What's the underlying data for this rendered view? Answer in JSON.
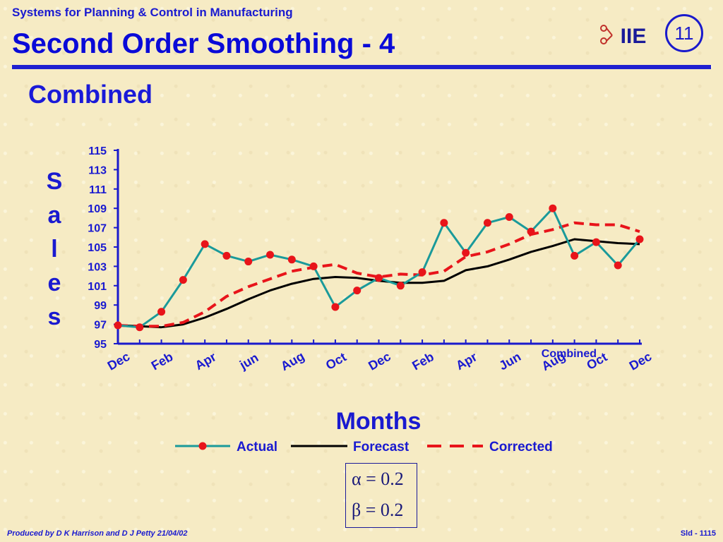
{
  "header": {
    "course": "Systems for Planning & Control in Manufacturing",
    "title": "Second Order Smoothing - 4",
    "slide_number": "11",
    "logo_text": "IIE"
  },
  "subtitle": "Combined",
  "formulas": {
    "alpha": "α = 0.2",
    "beta": "β = 0.2"
  },
  "footer": {
    "credit": "Produced by D K Harrison and D J Petty 21/04/02",
    "slide_id": "Sld - 1115"
  },
  "colors": {
    "actual": "#1a9a9a",
    "actual_marker": "#e8141a",
    "forecast": "#000000",
    "corrected": "#e8141a",
    "axis": "#1a1acc",
    "text": "#1a1ad0"
  },
  "chart_data": {
    "type": "line",
    "ylabel": "Sales",
    "xlabel": "Months",
    "annotation": "Combined",
    "ylim": [
      95,
      115
    ],
    "y_ticks": [
      "115",
      "113",
      "111",
      "109",
      "107",
      "105",
      "103",
      "101",
      "99",
      "97",
      "95"
    ],
    "x_tick_labels": [
      "Dec",
      "Feb",
      "Apr",
      "jun",
      "Aug",
      "Oct",
      "Dec",
      "Feb",
      "Apr",
      "Jun",
      "Aug",
      "Oct",
      "Dec"
    ],
    "legend_position": "bottom",
    "series": [
      {
        "name": "Actual",
        "style": "solid-markers",
        "values": [
          96.9,
          96.7,
          98.3,
          101.6,
          105.3,
          104.1,
          103.5,
          104.2,
          103.7,
          103.0,
          98.8,
          100.5,
          101.8,
          101.0,
          102.4,
          107.5,
          104.4,
          107.5,
          108.1,
          106.6,
          109.0,
          104.1,
          105.5,
          103.1,
          105.8
        ]
      },
      {
        "name": "Forecast",
        "style": "solid",
        "values": [
          96.9,
          96.8,
          96.7,
          97.0,
          97.7,
          98.6,
          99.6,
          100.5,
          101.2,
          101.7,
          101.9,
          101.8,
          101.5,
          101.3,
          101.3,
          101.5,
          102.6,
          103.0,
          103.7,
          104.5,
          105.1,
          105.8,
          105.6,
          105.4,
          105.3
        ]
      },
      {
        "name": "Corrected",
        "style": "dashed",
        "values": [
          96.9,
          96.8,
          96.8,
          97.2,
          98.3,
          99.9,
          100.9,
          101.7,
          102.5,
          102.9,
          103.2,
          102.3,
          101.9,
          102.2,
          102.1,
          102.5,
          104.0,
          104.5,
          105.3,
          106.3,
          106.8,
          107.5,
          107.3,
          107.3,
          106.6
        ]
      }
    ]
  }
}
